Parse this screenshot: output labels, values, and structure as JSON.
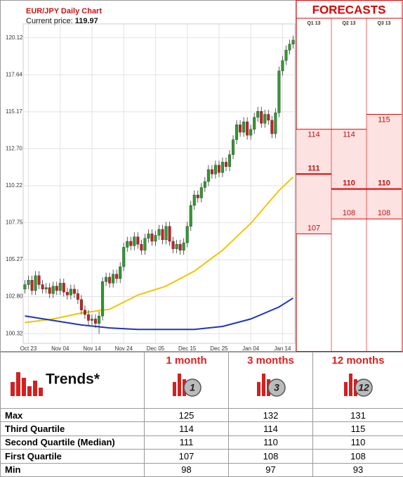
{
  "chart_data": {
    "type": "candlestick",
    "title": "EUR/JPY Daily Chart",
    "price_label": "Current price:",
    "current_price": 119.97,
    "categories": [
      null,
      "Oct 23",
      null,
      null,
      null,
      null,
      null,
      null,
      null,
      null,
      "Nov 04",
      null,
      null,
      null,
      null,
      null,
      null,
      null,
      null,
      "Nov 14",
      null,
      null,
      null,
      null,
      null,
      null,
      null,
      null,
      "Nov 24",
      null,
      null,
      null,
      null,
      null,
      null,
      null,
      null,
      "Dec 05",
      null,
      null,
      null,
      null,
      null,
      null,
      null,
      null,
      "Dec 15",
      null,
      null,
      null,
      null,
      null,
      null,
      null,
      null,
      "Dec 25",
      null,
      null,
      null,
      null,
      null,
      null,
      null,
      null,
      "Jan 04",
      null,
      null,
      null,
      null,
      null,
      null,
      null,
      null,
      "Jan 14",
      null,
      null,
      null
    ],
    "open": [
      103.3,
      103.6,
      103.9,
      103.2,
      104.2,
      103.6,
      103.3,
      103.4,
      103.0,
      103.5,
      103.2,
      103.7,
      103.1,
      102.9,
      103.3,
      103.0,
      102.6,
      101.9,
      101.6,
      101.2,
      101.3,
      101.0,
      101.5,
      103.8,
      104.1,
      103.7,
      104.3,
      104.0,
      104.8,
      106.1,
      106.5,
      106.2,
      106.8,
      106.3,
      105.9,
      106.7,
      107.0,
      106.5,
      106.9,
      107.3,
      106.6,
      107.5,
      106.5,
      106.0,
      106.3,
      105.9,
      106.4,
      107.5,
      108.9,
      109.6,
      109.4,
      110.1,
      110.5,
      111.3,
      111.0,
      111.6,
      111.1,
      111.8,
      111.5,
      112.3,
      113.3,
      114.3,
      113.8,
      114.5,
      113.6,
      114.0,
      114.8,
      115.2,
      114.4,
      115.0,
      114.6,
      113.7,
      115.1,
      117.9,
      118.6,
      119.3,
      119.7
    ],
    "high": [
      103.9,
      104.2,
      104.2,
      104.5,
      104.5,
      103.9,
      103.7,
      103.7,
      103.8,
      103.8,
      104.0,
      104.0,
      103.4,
      103.6,
      103.6,
      103.3,
      102.9,
      102.2,
      101.9,
      101.6,
      101.6,
      101.8,
      104.1,
      104.4,
      104.4,
      104.6,
      104.6,
      105.1,
      106.4,
      106.8,
      106.8,
      107.1,
      107.1,
      106.6,
      107.0,
      107.3,
      107.3,
      107.2,
      107.6,
      107.6,
      107.8,
      107.8,
      106.8,
      106.6,
      106.6,
      106.7,
      107.8,
      109.2,
      109.9,
      109.9,
      110.4,
      110.8,
      111.6,
      111.6,
      111.9,
      111.9,
      112.1,
      112.1,
      112.6,
      113.6,
      114.6,
      114.6,
      114.8,
      114.8,
      114.3,
      115.1,
      115.5,
      115.5,
      115.3,
      115.3,
      114.9,
      115.4,
      118.2,
      118.9,
      119.6,
      120.0,
      120.27
    ],
    "low": [
      103.0,
      103.3,
      102.9,
      102.9,
      103.3,
      103.0,
      103.0,
      102.7,
      102.7,
      102.9,
      102.9,
      102.8,
      102.6,
      102.6,
      102.7,
      102.3,
      101.6,
      101.3,
      100.9,
      100.9,
      100.7,
      100.3,
      101.2,
      103.5,
      103.4,
      103.4,
      103.7,
      103.7,
      104.5,
      105.8,
      105.9,
      105.9,
      106.0,
      105.6,
      105.6,
      106.4,
      106.2,
      106.2,
      106.6,
      106.3,
      106.3,
      106.2,
      105.7,
      105.7,
      105.6,
      105.6,
      106.1,
      107.2,
      108.6,
      109.1,
      109.1,
      109.8,
      110.2,
      110.7,
      110.7,
      110.8,
      110.8,
      111.2,
      111.2,
      112.0,
      113.0,
      113.5,
      113.5,
      113.3,
      113.3,
      113.7,
      114.5,
      114.1,
      114.1,
      114.3,
      113.4,
      113.4,
      114.8,
      117.6,
      118.3,
      119.0,
      119.4
    ],
    "close": [
      103.6,
      103.9,
      103.2,
      104.2,
      103.6,
      103.3,
      103.4,
      103.0,
      103.5,
      103.2,
      103.7,
      103.1,
      102.9,
      103.3,
      103.0,
      102.6,
      101.9,
      101.6,
      101.2,
      101.3,
      101.0,
      101.5,
      103.8,
      104.1,
      103.7,
      104.3,
      104.0,
      104.8,
      106.1,
      106.5,
      106.2,
      106.8,
      106.3,
      105.9,
      106.7,
      107.0,
      106.5,
      106.9,
      107.3,
      106.6,
      107.5,
      106.5,
      106.0,
      106.3,
      105.9,
      106.4,
      107.5,
      108.9,
      109.6,
      109.4,
      110.1,
      110.5,
      111.3,
      111.0,
      111.6,
      111.1,
      111.8,
      111.5,
      112.3,
      113.3,
      114.3,
      113.8,
      114.5,
      113.6,
      114.0,
      114.8,
      115.2,
      114.4,
      115.0,
      114.6,
      113.7,
      115.1,
      117.9,
      118.6,
      119.3,
      119.7,
      119.97
    ],
    "up_color": "#2e9a2e",
    "down_color": "#cc1f1f",
    "moving_averages": [
      {
        "color": "#f2c500",
        "x": [
          0,
          8,
          16,
          24,
          32,
          40,
          48,
          56,
          64,
          72,
          76
        ],
        "values": [
          101.06,
          101.3,
          101.7,
          101.95,
          102.9,
          103.5,
          104.5,
          105.9,
          107.7,
          109.9,
          110.8
        ]
      },
      {
        "color": "#2233bb",
        "x": [
          0,
          8,
          16,
          24,
          32,
          40,
          48,
          56,
          64,
          72,
          76
        ],
        "values": [
          101.5,
          101.2,
          100.9,
          100.7,
          100.6,
          100.6,
          100.6,
          100.8,
          101.3,
          102.1,
          102.7
        ]
      }
    ],
    "ylim": [
      99.67,
      121.05
    ],
    "yticks": [
      100.32,
      {
        "value": 102.8,
        "label": "102.80"
      },
      105.27,
      107.75,
      {
        "value": 110.22,
        "label": "110.22"
      },
      {
        "value": 112.7,
        "label": "112.70"
      },
      115.17,
      117.64,
      120.12
    ],
    "grid": true,
    "forecasts": {
      "title": "FORECASTS",
      "periods": [
        "Q1 13",
        "Q2 13",
        "Q3 13"
      ],
      "upper": [
        114,
        114,
        115
      ],
      "median": [
        111,
        110,
        110
      ],
      "lower": [
        107,
        108,
        108
      ],
      "color": "#e00000"
    }
  },
  "trends": {
    "title": "Trends*",
    "columns": [
      {
        "label": "1 month",
        "icon": "1"
      },
      {
        "label": "3 months",
        "icon": "3"
      },
      {
        "label": "12 months",
        "icon": "12"
      }
    ],
    "row_labels": [
      "Max",
      "Third Quartile",
      "Second Quartile (Median)",
      "First Quartile",
      "Min"
    ],
    "rows": [
      [
        125,
        132,
        131
      ],
      [
        114,
        114,
        115
      ],
      [
        111,
        110,
        110
      ],
      [
        107,
        108,
        108
      ],
      [
        98,
        97,
        93
      ]
    ]
  }
}
